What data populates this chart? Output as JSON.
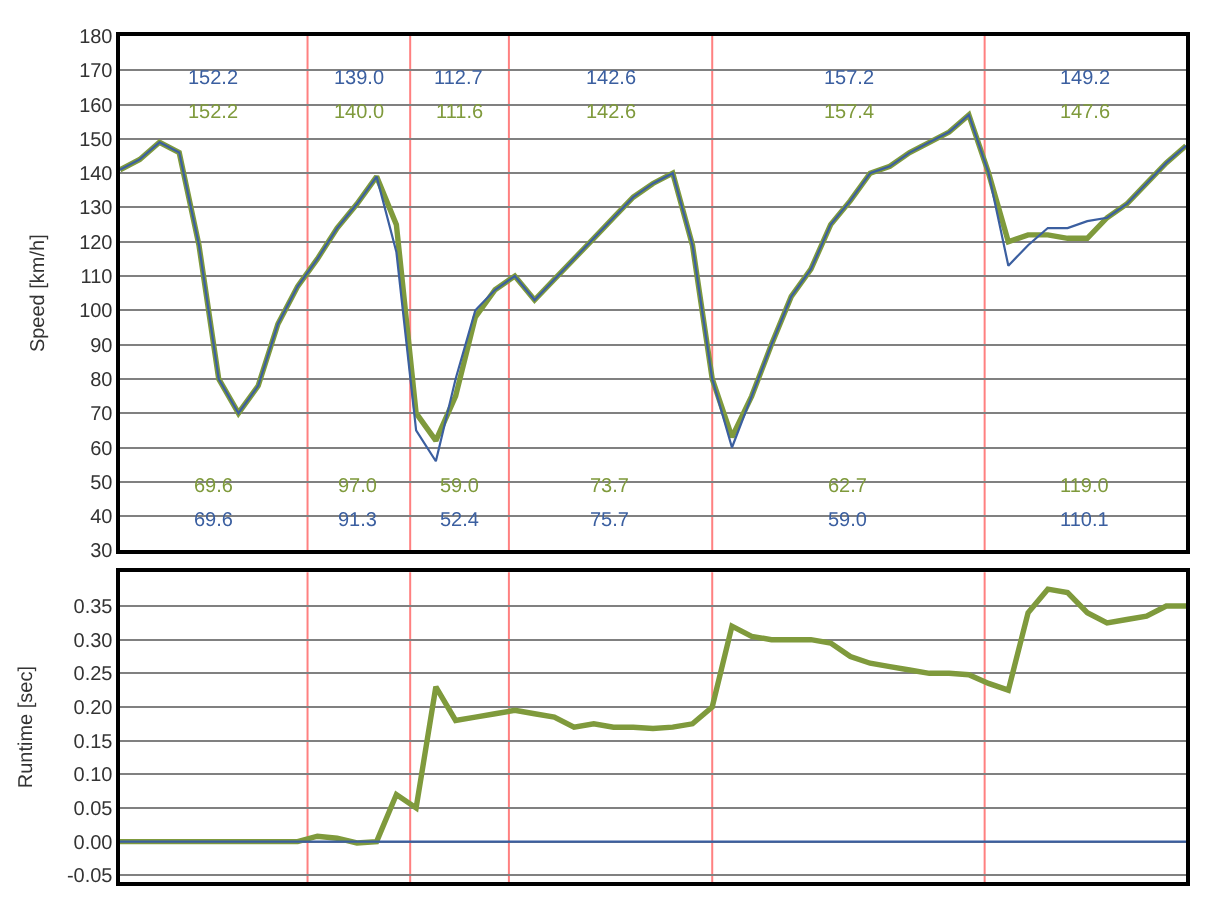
{
  "chart_data": [
    {
      "type": "line",
      "ylabel": "Speed [km/h]",
      "ylim": [
        30,
        180
      ],
      "yticks": [
        30,
        40,
        50,
        60,
        70,
        80,
        90,
        100,
        110,
        120,
        130,
        140,
        150,
        160,
        170,
        180
      ],
      "grid": "y",
      "tick_labels": "y",
      "marker": "none",
      "line_style": "solid",
      "categories": [
        null,
        null,
        null,
        null,
        null,
        null,
        null,
        null,
        null,
        null,
        null,
        null,
        null,
        null,
        null,
        null,
        null,
        null,
        null,
        null,
        null,
        null,
        null,
        null,
        null,
        null,
        null,
        null,
        null,
        null,
        null,
        null,
        null,
        null,
        null,
        null,
        null,
        null,
        null,
        null,
        null,
        null,
        null,
        null,
        null,
        null,
        null,
        null,
        null,
        null,
        null,
        null,
        null,
        null,
        null
      ],
      "series": [
        {
          "color": "#3b5fa0",
          "values": [
            141,
            144,
            149,
            146,
            119,
            80,
            70,
            78,
            96,
            107,
            115,
            124,
            131,
            139,
            117,
            65,
            56,
            80,
            100,
            106,
            110,
            103,
            109,
            115,
            121,
            127,
            133,
            137,
            140,
            119,
            80,
            60,
            75,
            90,
            104,
            112,
            125,
            132,
            140,
            142,
            146,
            149,
            152,
            157,
            140,
            113,
            119,
            124,
            124,
            126,
            127,
            131,
            137,
            143,
            148
          ]
        },
        {
          "color": "#7f9a3c",
          "values": [
            141,
            144,
            149,
            146,
            119,
            80,
            70,
            78,
            96,
            107,
            115,
            124,
            131,
            139,
            125,
            70,
            62,
            75,
            98,
            106,
            110,
            103,
            109,
            115,
            121,
            127,
            133,
            137,
            140,
            119,
            80,
            63,
            75,
            90,
            104,
            112,
            125,
            132,
            140,
            142,
            146,
            149,
            152,
            157,
            140,
            120,
            122,
            122,
            121,
            121,
            127,
            131,
            137,
            143,
            148
          ]
        }
      ],
      "annotations": [
        "152.2",
        "139.0",
        "112.7",
        "142.6",
        "157.2",
        "149.2",
        "152.2",
        "140.0",
        "111.6",
        "142.6",
        "157.4",
        "147.6",
        "69.6",
        "97.0",
        "59.0",
        "73.7",
        "62.7",
        "119.0",
        "69.6",
        "91.3",
        "52.4",
        "75.7",
        "59.0",
        "110.1"
      ]
    },
    {
      "type": "line",
      "ylabel": "Runtime [sec]",
      "ylim": [
        -0.06,
        0.4
      ],
      "yticks": [
        {
          "value": -0.05,
          "label": "-0.05"
        },
        {
          "value": 0,
          "label": "0.00"
        },
        {
          "value": 0.05,
          "label": "0.05"
        },
        {
          "value": 0.1,
          "label": "0.10"
        },
        {
          "value": 0.15,
          "label": "0.15"
        },
        {
          "value": 0.2,
          "label": "0.20"
        },
        {
          "value": 0.25,
          "label": "0.25"
        },
        {
          "value": 0.3,
          "label": "0.30"
        },
        {
          "value": 0.35,
          "label": "0.35"
        }
      ],
      "grid": "y",
      "tick_labels": "y",
      "marker": "none",
      "line_style": "solid",
      "categories": [
        null,
        null,
        null,
        null,
        null,
        null,
        null,
        null,
        null,
        null,
        null,
        null,
        null,
        null,
        null,
        null,
        null,
        null,
        null,
        null,
        null,
        null,
        null,
        null,
        null,
        null,
        null,
        null,
        null,
        null,
        null,
        null,
        null,
        null,
        null,
        null,
        null,
        null,
        null,
        null,
        null,
        null,
        null,
        null,
        null,
        null,
        null,
        null,
        null,
        null,
        null,
        null,
        null,
        null,
        null
      ],
      "series": [
        {
          "color": "#3b5fa0",
          "values": [
            0,
            0,
            0,
            0,
            0,
            0,
            0,
            0,
            0,
            0,
            0,
            0,
            0,
            0,
            0,
            0,
            0,
            0,
            0,
            0,
            0,
            0,
            0,
            0,
            0,
            0,
            0,
            0,
            0,
            0,
            0,
            0,
            0,
            0,
            0,
            0,
            0,
            0,
            0,
            0,
            0,
            0,
            0,
            0,
            0,
            0,
            0,
            0,
            0,
            0,
            0,
            0,
            0,
            0,
            0
          ]
        },
        {
          "color": "#7f9a3c",
          "values": [
            0,
            0,
            0,
            0,
            0,
            0,
            0,
            0,
            0,
            0,
            0.008,
            0.005,
            -0.002,
            0,
            0.07,
            0.05,
            0.23,
            0.18,
            0.185,
            0.19,
            0.195,
            0.19,
            0.185,
            0.17,
            0.175,
            0.17,
            0.17,
            0.168,
            0.17,
            0.175,
            0.2,
            0.32,
            0.305,
            0.3,
            0.3,
            0.3,
            0.295,
            0.275,
            0.265,
            0.26,
            0.255,
            0.25,
            0.25,
            0.248,
            0.235,
            0.225,
            0.34,
            0.375,
            0.37,
            0.34,
            0.325,
            0.33,
            0.335,
            0.35,
            0.35
          ]
        }
      ]
    }
  ]
}
